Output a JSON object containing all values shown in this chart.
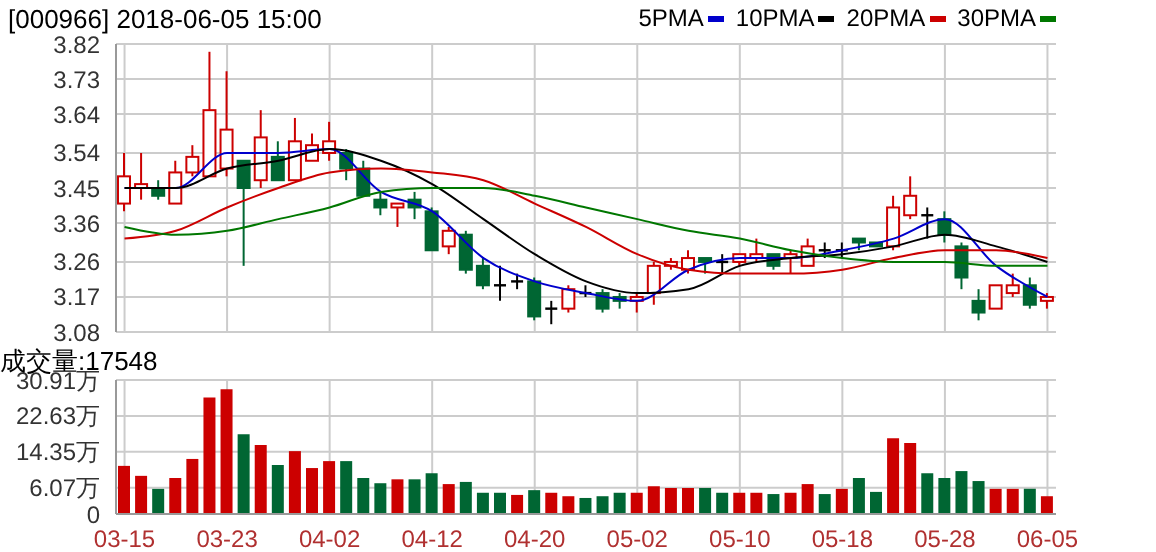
{
  "chart_data": [
    {
      "type": "candlestick",
      "title": "[000966] 2018-06-05 15:00",
      "legend": "top right",
      "grid": true,
      "tick_labels": "y",
      "categories": [
        null,
        null,
        null,
        null,
        null,
        null,
        null,
        null,
        null,
        null,
        null,
        null,
        null,
        null,
        null,
        null,
        null,
        null,
        null,
        null,
        null,
        null,
        null,
        null,
        null,
        null,
        null,
        null,
        null,
        null,
        null,
        null,
        null,
        null,
        null,
        null,
        null,
        null,
        null,
        null,
        null,
        null,
        null,
        null,
        null,
        null,
        null,
        null,
        null,
        null,
        null,
        null,
        null,
        null,
        null
      ],
      "ylim": [
        3.08,
        3.82
      ],
      "yticks": [
        3.08,
        3.17,
        3.26,
        3.36,
        3.45,
        3.54,
        3.64,
        3.73,
        3.82
      ],
      "ohlc": [
        [
          3.41,
          3.54,
          3.39,
          3.48
        ],
        [
          3.45,
          3.54,
          3.42,
          3.46
        ],
        [
          3.45,
          3.47,
          3.42,
          3.43
        ],
        [
          3.41,
          3.52,
          3.41,
          3.49
        ],
        [
          3.49,
          3.56,
          3.48,
          3.53
        ],
        [
          3.48,
          3.8,
          3.48,
          3.65
        ],
        [
          3.5,
          3.75,
          3.48,
          3.6
        ],
        [
          3.52,
          3.52,
          3.25,
          3.45
        ],
        [
          3.47,
          3.65,
          3.45,
          3.58
        ],
        [
          3.53,
          3.57,
          3.47,
          3.47
        ],
        [
          3.47,
          3.63,
          3.47,
          3.57
        ],
        [
          3.52,
          3.59,
          3.52,
          3.56
        ],
        [
          3.54,
          3.62,
          3.52,
          3.57
        ],
        [
          3.54,
          3.55,
          3.47,
          3.5
        ],
        [
          3.5,
          3.52,
          3.43,
          3.43
        ],
        [
          3.42,
          3.44,
          3.38,
          3.4
        ],
        [
          3.4,
          3.41,
          3.35,
          3.41
        ],
        [
          3.42,
          3.44,
          3.37,
          3.4
        ],
        [
          3.39,
          3.4,
          3.29,
          3.29
        ],
        [
          3.3,
          3.35,
          3.28,
          3.34
        ],
        [
          3.33,
          3.34,
          3.23,
          3.24
        ],
        [
          3.25,
          3.27,
          3.19,
          3.2
        ],
        [
          3.2,
          3.25,
          3.16,
          3.2
        ],
        [
          3.21,
          3.23,
          3.19,
          3.21
        ],
        [
          3.21,
          3.22,
          3.11,
          3.12
        ],
        [
          3.14,
          3.16,
          3.1,
          3.14
        ],
        [
          3.14,
          3.2,
          3.13,
          3.19
        ],
        [
          3.18,
          3.2,
          3.17,
          3.18
        ],
        [
          3.18,
          3.19,
          3.13,
          3.14
        ],
        [
          3.17,
          3.18,
          3.14,
          3.16
        ],
        [
          3.16,
          3.18,
          3.13,
          3.17
        ],
        [
          3.18,
          3.26,
          3.15,
          3.25
        ],
        [
          3.25,
          3.27,
          3.24,
          3.26
        ],
        [
          3.24,
          3.29,
          3.23,
          3.27
        ],
        [
          3.27,
          3.27,
          3.23,
          3.26
        ],
        [
          3.26,
          3.28,
          3.23,
          3.26
        ],
        [
          3.26,
          3.28,
          3.25,
          3.28
        ],
        [
          3.27,
          3.32,
          3.26,
          3.28
        ],
        [
          3.28,
          3.28,
          3.24,
          3.25
        ],
        [
          3.27,
          3.29,
          3.23,
          3.28
        ],
        [
          3.25,
          3.32,
          3.25,
          3.3
        ],
        [
          3.29,
          3.31,
          3.27,
          3.29
        ],
        [
          3.29,
          3.31,
          3.27,
          3.29
        ],
        [
          3.32,
          3.32,
          3.29,
          3.31
        ],
        [
          3.31,
          3.31,
          3.3,
          3.3
        ],
        [
          3.3,
          3.43,
          3.29,
          3.4
        ],
        [
          3.38,
          3.48,
          3.37,
          3.43
        ],
        [
          3.38,
          3.4,
          3.32,
          3.38
        ],
        [
          3.37,
          3.39,
          3.31,
          3.33
        ],
        [
          3.3,
          3.31,
          3.19,
          3.22
        ],
        [
          3.16,
          3.19,
          3.11,
          3.13
        ],
        [
          3.14,
          3.2,
          3.14,
          3.2
        ],
        [
          3.18,
          3.23,
          3.17,
          3.2
        ],
        [
          3.2,
          3.22,
          3.14,
          3.15
        ],
        [
          3.16,
          3.18,
          3.14,
          3.17
        ]
      ],
      "colors": [
        "#cc0000",
        "#cc0000",
        "#006633",
        "#cc0000",
        "#cc0000",
        "#cc0000",
        "#cc0000",
        "#006633",
        "#cc0000",
        "#006633",
        "#cc0000",
        "#cc0000",
        "#cc0000",
        "#006633",
        "#006633",
        "#006633",
        "#cc0000",
        "#006633",
        "#006633",
        "#cc0000",
        "#006633",
        "#006633",
        "#000000",
        "#000000",
        "#006633",
        "#000000",
        "#cc0000",
        "#000000",
        "#006633",
        "#006633",
        "#cc0000",
        "#cc0000",
        "#cc0000",
        "#cc0000",
        "#006633",
        "#000000",
        "#cc0000",
        "#cc0000",
        "#006633",
        "#cc0000",
        "#cc0000",
        "#000000",
        "#000000",
        "#006633",
        "#006633",
        "#cc0000",
        "#cc0000",
        "#000000",
        "#006633",
        "#006633",
        "#006633",
        "#cc0000",
        "#cc0000",
        "#006633",
        "#cc0000"
      ],
      "series": [
        {
          "name": "5PMA",
          "type": "line",
          "color": "#0000cc",
          "values": [
            3.45,
            null,
            null,
            3.45,
            null,
            null,
            3.54,
            null,
            null,
            3.54,
            null,
            null,
            3.55,
            null,
            null,
            3.44,
            null,
            null,
            3.39,
            null,
            null,
            3.27,
            null,
            null,
            3.21,
            null,
            null,
            3.18,
            null,
            null,
            3.16,
            null,
            null,
            3.24,
            null,
            null,
            3.27,
            null,
            null,
            3.27,
            null,
            null,
            3.29,
            null,
            null,
            3.32,
            null,
            null,
            3.37,
            null,
            null,
            3.25,
            null,
            null,
            3.17
          ]
        },
        {
          "name": "10PMA",
          "type": "line",
          "color": "#000000",
          "values": [
            3.45,
            null,
            null,
            3.45,
            null,
            null,
            3.5,
            null,
            null,
            3.52,
            null,
            null,
            3.55,
            null,
            null,
            3.52,
            null,
            null,
            3.46,
            null,
            null,
            3.37,
            null,
            null,
            3.28,
            null,
            null,
            3.21,
            null,
            null,
            3.18,
            null,
            null,
            3.19,
            null,
            null,
            3.25,
            null,
            null,
            3.27,
            null,
            null,
            3.28,
            null,
            null,
            3.3,
            null,
            null,
            3.33,
            null,
            null,
            3.3,
            null,
            null,
            3.26
          ]
        },
        {
          "name": "20PMA",
          "type": "line",
          "color": "#cc0000",
          "values": [
            3.32,
            null,
            null,
            3.34,
            null,
            null,
            3.4,
            null,
            null,
            3.45,
            null,
            null,
            3.49,
            null,
            null,
            3.5,
            null,
            null,
            3.49,
            null,
            null,
            3.47,
            null,
            null,
            3.41,
            null,
            null,
            3.35,
            null,
            null,
            3.28,
            null,
            null,
            3.24,
            null,
            null,
            3.23,
            null,
            null,
            3.23,
            null,
            null,
            3.24,
            null,
            null,
            3.27,
            null,
            null,
            3.29,
            null,
            null,
            3.29,
            null,
            null,
            3.27
          ]
        },
        {
          "name": "30PMA",
          "type": "line",
          "color": "#007700",
          "values": [
            3.35,
            null,
            null,
            3.33,
            null,
            null,
            3.34,
            null,
            null,
            3.37,
            null,
            null,
            3.4,
            null,
            null,
            3.44,
            null,
            null,
            3.45,
            null,
            null,
            3.45,
            null,
            null,
            3.43,
            null,
            null,
            3.4,
            null,
            null,
            3.37,
            null,
            null,
            3.34,
            null,
            null,
            3.32,
            null,
            null,
            3.29,
            null,
            null,
            3.27,
            null,
            null,
            3.26,
            null,
            null,
            3.26,
            null,
            null,
            3.25,
            null,
            null,
            3.25
          ]
        }
      ]
    },
    {
      "type": "bar",
      "title": "成交量:17548",
      "grid": true,
      "categories": [
        "03-15",
        null,
        null,
        null,
        null,
        null,
        "03-23",
        null,
        null,
        null,
        null,
        null,
        "04-02",
        null,
        null,
        null,
        null,
        null,
        "04-12",
        null,
        null,
        null,
        null,
        null,
        "04-20",
        null,
        null,
        null,
        null,
        null,
        "05-02",
        null,
        null,
        null,
        null,
        null,
        "05-10",
        null,
        null,
        null,
        null,
        null,
        "05-18",
        null,
        null,
        null,
        null,
        null,
        "05-28",
        null,
        null,
        null,
        null,
        null,
        "06-05"
      ],
      "ylim": [
        0,
        30.91
      ],
      "yticks": [
        0,
        {
          "value": 6.07,
          "label": "6.07万"
        },
        {
          "value": 14.35,
          "label": "14.35万"
        },
        {
          "value": 22.63,
          "label": "22.63万"
        },
        {
          "value": 30.91,
          "label": "30.91万"
        }
      ],
      "values": [
        11.1,
        8.8,
        5.8,
        8.3,
        12.7,
        26.9,
        28.8,
        18.4,
        15.9,
        11.3,
        14.5,
        10.6,
        12.2,
        12.2,
        8.3,
        7.1,
        8.0,
        8.0,
        9.4,
        6.9,
        7.4,
        4.9,
        4.9,
        4.4,
        5.5,
        4.9,
        4.1,
        3.7,
        4.1,
        4.9,
        4.9,
        6.4,
        6.0,
        6.0,
        6.0,
        4.9,
        4.9,
        4.9,
        4.6,
        4.9,
        6.9,
        4.6,
        5.8,
        8.3,
        5.1,
        17.5,
        16.4,
        9.4,
        8.3,
        9.9,
        7.6,
        5.8,
        5.8,
        5.8,
        4.1
      ],
      "colors": [
        "#cc0000",
        "#cc0000",
        "#006633",
        "#cc0000",
        "#cc0000",
        "#cc0000",
        "#cc0000",
        "#006633",
        "#cc0000",
        "#006633",
        "#cc0000",
        "#cc0000",
        "#cc0000",
        "#006633",
        "#006633",
        "#006633",
        "#cc0000",
        "#006633",
        "#006633",
        "#cc0000",
        "#006633",
        "#006633",
        "#006633",
        "#cc0000",
        "#006633",
        "#cc0000",
        "#cc0000",
        "#006633",
        "#006633",
        "#006633",
        "#cc0000",
        "#cc0000",
        "#cc0000",
        "#cc0000",
        "#006633",
        "#006633",
        "#cc0000",
        "#cc0000",
        "#006633",
        "#cc0000",
        "#cc0000",
        "#006633",
        "#cc0000",
        "#006633",
        "#006633",
        "#cc0000",
        "#cc0000",
        "#006633",
        "#006633",
        "#006633",
        "#006633",
        "#cc0000",
        "#cc0000",
        "#006633",
        "#cc0000"
      ]
    }
  ]
}
